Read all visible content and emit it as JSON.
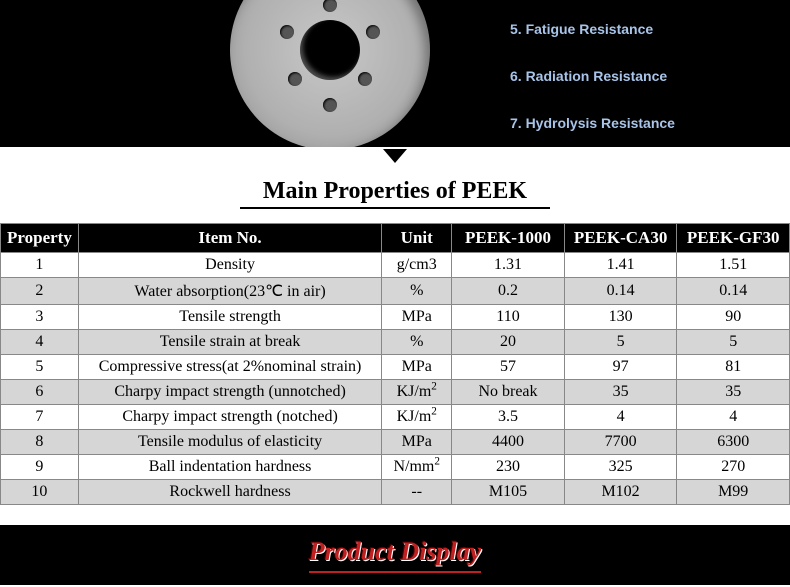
{
  "features": [
    "5. Fatigue Resistance",
    "6. Radiation Resistance",
    "7. Hydrolysis Resistance"
  ],
  "main_title": "Main Properties of PEEK",
  "table": {
    "headers": [
      "Property",
      "Item No.",
      "Unit",
      "PEEK-1000",
      "PEEK-CA30",
      "PEEK-GF30"
    ],
    "rows": [
      {
        "n": "1",
        "item": "Density",
        "unit": "g/cm3",
        "v1": "1.31",
        "v2": "1.41",
        "v3": "1.51",
        "alt": false
      },
      {
        "n": "2",
        "item": "Water absorption(23℃ in air)",
        "unit": "%",
        "v1": "0.2",
        "v2": "0.14",
        "v3": "0.14",
        "alt": true
      },
      {
        "n": "3",
        "item": "Tensile strength",
        "unit": "MPa",
        "v1": "110",
        "v2": "130",
        "v3": "90",
        "alt": false
      },
      {
        "n": "4",
        "item": "Tensile strain at break",
        "unit": "%",
        "v1": "20",
        "v2": "5",
        "v3": "5",
        "alt": true
      },
      {
        "n": "5",
        "item": "Compressive stress(at 2%nominal strain)",
        "unit": "MPa",
        "v1": "57",
        "v2": "97",
        "v3": "81",
        "alt": false
      },
      {
        "n": "6",
        "item": "Charpy impact strength (unnotched)",
        "unit_html": "KJ/m<span class='sup'>2</span>",
        "v1": "No break",
        "v2": "35",
        "v3": "35",
        "alt": true
      },
      {
        "n": "7",
        "item": "Charpy impact strength (notched)",
        "unit_html": "KJ/m<span class='sup'>2</span>",
        "v1": "3.5",
        "v2": "4",
        "v3": "4",
        "alt": false
      },
      {
        "n": "8",
        "item": "Tensile modulus of elasticity",
        "unit": "MPa",
        "v1": "4400",
        "v2": "7700",
        "v3": "6300",
        "alt": true
      },
      {
        "n": "9",
        "item": "Ball indentation hardness",
        "unit_html": "N/mm<span class='sup'>2</span>",
        "v1": "230",
        "v2": "325",
        "v3": "270",
        "alt": false
      },
      {
        "n": "10",
        "item": "Rockwell hardness",
        "unit": "--",
        "v1": "M105",
        "v2": "M102",
        "v3": "M99",
        "alt": true
      }
    ]
  },
  "footer_title": "Product Display",
  "colors": {
    "header_bg": "#000000",
    "header_fg": "#ffffff",
    "row_alt_bg": "#d6d6d6",
    "row_bg": "#ffffff",
    "border": "#888888",
    "feature_text": "#a8c4e8",
    "footer_text": "#c02020"
  }
}
